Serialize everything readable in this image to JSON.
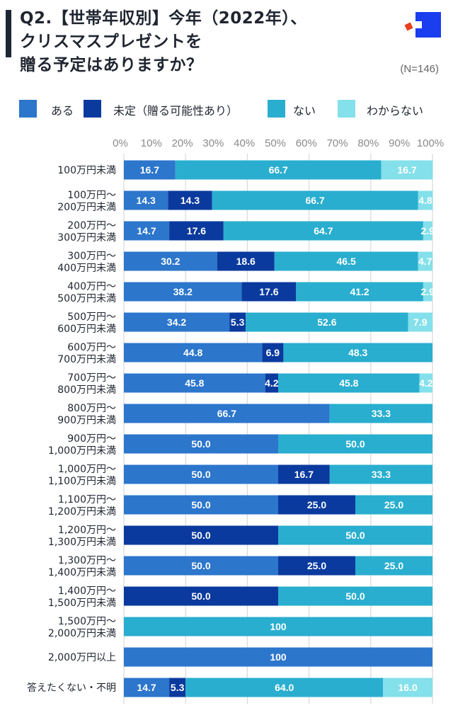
{
  "header": {
    "title_lines": [
      "Q2.【世帯年収別】今年（2022年）、",
      "クリスマスプレゼントを",
      "贈る予定はありますか？"
    ],
    "sample_size": "(N=146)",
    "logo": "brand-logo-icon"
  },
  "colors": {
    "title_stripe": "#1b2735",
    "logo_blue": "#1a3df0",
    "logo_red": "#e8401c",
    "gridline": "#d9d9d9"
  },
  "chart_data": {
    "type": "bar",
    "orientation": "horizontal-stacked-100",
    "title": "Q2.【世帯年収別】今年（2022年）、クリスマスプレゼントを贈る予定はありますか？",
    "xlabel": "",
    "ylabel": "",
    "xlim": [
      0,
      100
    ],
    "x_ticks": [
      "0%",
      "10%",
      "20%",
      "30%",
      "40%",
      "50%",
      "60%",
      "70%",
      "80%",
      "90%",
      "100%"
    ],
    "gridlines_at": [
      0,
      20,
      40,
      60,
      80,
      100
    ],
    "grid": true,
    "legend_position": "top",
    "categories": [
      [
        "100万円未満"
      ],
      [
        "100万円〜",
        "200万円未満"
      ],
      [
        "200万円〜",
        "300万円未満"
      ],
      [
        "300万円〜",
        "400万円未満"
      ],
      [
        "400万円〜",
        "500万円未満"
      ],
      [
        "500万円〜",
        "600万円未満"
      ],
      [
        "600万円〜",
        "700万円未満"
      ],
      [
        "700万円〜",
        "800万円未満"
      ],
      [
        "800万円〜",
        "900万円未満"
      ],
      [
        "900万円〜",
        "1,000万円未満"
      ],
      [
        "1,000万円〜",
        "1,100万円未満"
      ],
      [
        "1,100万円〜",
        "1,200万円未満"
      ],
      [
        "1,200万円〜",
        "1,300万円未満"
      ],
      [
        "1,300万円〜",
        "1,400万円未満"
      ],
      [
        "1,400万円〜",
        "1,500万円未満"
      ],
      [
        "1,500万円〜",
        "2,000万円未満"
      ],
      [
        "2,000万円以上"
      ],
      [
        "答えたくない・不明"
      ]
    ],
    "series": [
      {
        "name": "ある",
        "color": "#2c76cc",
        "values": [
          16.7,
          14.3,
          14.7,
          30.2,
          38.2,
          34.2,
          44.8,
          45.8,
          66.7,
          50.0,
          50.0,
          50.0,
          0,
          50.0,
          0,
          0,
          100,
          14.7
        ],
        "labels": [
          "16.7",
          "14.3",
          "14.7",
          "30.2",
          "38.2",
          "34.2",
          "44.8",
          "45.8",
          "66.7",
          "50.0",
          "50.0",
          "50.0",
          "",
          "50.0",
          "",
          "",
          "100",
          "14.7"
        ]
      },
      {
        "name": "未定（贈る可能性あり）",
        "color": "#0a3a9e",
        "values": [
          0,
          14.3,
          17.6,
          18.6,
          17.6,
          5.3,
          6.9,
          4.2,
          0,
          0,
          16.7,
          25.0,
          50.0,
          25.0,
          50.0,
          0,
          0,
          5.3
        ],
        "labels": [
          "",
          "14.3",
          "17.6",
          "18.6",
          "17.6",
          "5.3",
          "6.9",
          "4.2",
          "",
          "",
          "16.7",
          "25.0",
          "50.0",
          "25.0",
          "50.0",
          "",
          "",
          "5.3"
        ]
      },
      {
        "name": "ない",
        "color": "#29aecf",
        "values": [
          66.7,
          66.7,
          64.7,
          46.5,
          41.2,
          52.6,
          48.3,
          45.8,
          33.3,
          50.0,
          33.3,
          25.0,
          50.0,
          25.0,
          50.0,
          100,
          0,
          64.0
        ],
        "labels": [
          "66.7",
          "66.7",
          "64.7",
          "46.5",
          "41.2",
          "52.6",
          "48.3",
          "45.8",
          "33.3",
          "50.0",
          "33.3",
          "25.0",
          "50.0",
          "25.0",
          "50.0",
          "100",
          "",
          "64.0"
        ]
      },
      {
        "name": "わからない",
        "color": "#84e0ea",
        "values": [
          16.7,
          4.8,
          2.9,
          4.7,
          2.9,
          7.9,
          0,
          4.2,
          0,
          0,
          0,
          0,
          0,
          0,
          0,
          0,
          0,
          16.0
        ],
        "labels": [
          "16.7",
          "4.8",
          "2.9",
          "4.7",
          "2.9",
          "7.9",
          "",
          "4.2",
          "",
          "",
          "",
          "",
          "",
          "",
          "",
          "",
          "",
          "16.0"
        ]
      }
    ]
  }
}
